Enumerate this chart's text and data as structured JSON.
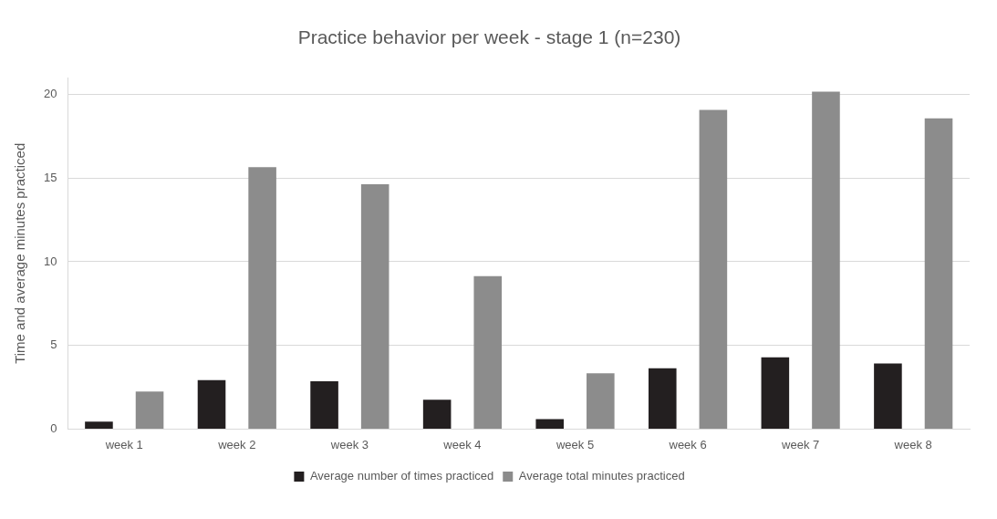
{
  "chart_data": {
    "type": "bar",
    "title": "Practice behavior per week - stage 1 (n=230)",
    "ylabel": "Time and average minutes practiced",
    "categories": [
      "week 1",
      "week 2",
      "week 3",
      "week 4",
      "week 5",
      "week 6",
      "week 7",
      "week 8"
    ],
    "series": [
      {
        "name": "Average number of times practiced",
        "color": "#231f20",
        "values": [
          0.44,
          2.92,
          2.85,
          1.75,
          0.59,
          3.63,
          4.29,
          3.92
        ]
      },
      {
        "name": "Average total minutes practiced",
        "color": "#8c8c8c",
        "values": [
          2.25,
          15.66,
          14.63,
          9.14,
          3.33,
          19.07,
          20.16,
          18.57
        ]
      }
    ],
    "ylim": [
      0,
      21
    ],
    "yticks": [
      0,
      5,
      10,
      15,
      20
    ],
    "grid": "y",
    "legend": "bottom"
  }
}
